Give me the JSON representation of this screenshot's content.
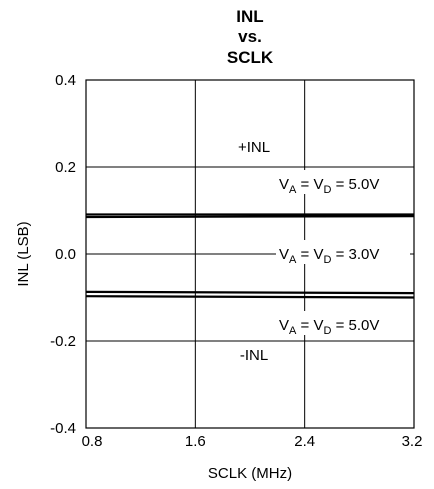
{
  "chart_data": {
    "type": "line",
    "title": [
      "INL",
      "vs.",
      "SCLK"
    ],
    "xlabel": "SCLK (MHz)",
    "ylabel": "INL (LSB)",
    "xlim": [
      0.8,
      3.2
    ],
    "ylim": [
      -0.4,
      0.4
    ],
    "x_ticks": [
      0.8,
      1.6,
      2.4,
      3.2
    ],
    "x_tick_labels": [
      "0.8",
      "1.6",
      "2.4",
      "3.2"
    ],
    "y_ticks": [
      0.4,
      0.2,
      0.0,
      -0.2,
      -0.4
    ],
    "y_tick_labels": [
      "0.4",
      "0.2",
      "0.0",
      "-0.2",
      "-0.4"
    ],
    "grid": true,
    "x": [
      0.8,
      3.2
    ],
    "series": [
      {
        "values": [
          0.091,
          0.091
        ]
      },
      {
        "values": [
          0.085,
          0.087
        ]
      },
      {
        "values": [
          -0.087,
          -0.09
        ]
      },
      {
        "values": [
          -0.097,
          -0.1
        ]
      }
    ],
    "annotations": {
      "inl_pos": "+INL",
      "inl_neg": "-INL",
      "cond_top": {
        "base": "V",
        "sub1": "A",
        "eq": " = V",
        "sub2": "D",
        "val": " = 5.0V"
      },
      "cond_mid": {
        "base": "V",
        "sub1": "A",
        "eq": " = V",
        "sub2": "D",
        "val": " = 3.0V"
      },
      "cond_bot": {
        "base": "V",
        "sub1": "A",
        "eq": " = V",
        "sub2": "D",
        "val": " = 5.0V"
      }
    }
  }
}
